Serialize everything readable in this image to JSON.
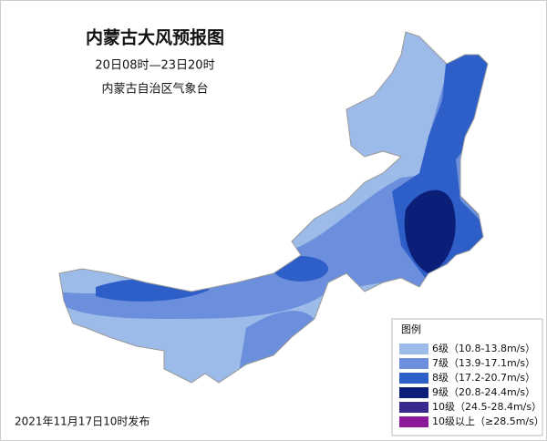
{
  "header": {
    "title": "内蒙古大风预报图",
    "period": "20日08时—23日20时",
    "issuer": "内蒙古自治区气象台"
  },
  "legend": {
    "title": "图例",
    "items": [
      {
        "label": "6级（10.8-13.8m/s）",
        "color": "#9dbbe8"
      },
      {
        "label": "7级（13.9-17.1m/s）",
        "color": "#6b8fdc"
      },
      {
        "label": "8级（17.2-20.7m/s）",
        "color": "#2e5ec8"
      },
      {
        "label": "9级（20.8-24.4m/s）",
        "color": "#0b1e78"
      },
      {
        "label": "10级（24.5-28.4m/s）",
        "color": "#3a2a8e"
      },
      {
        "label": "10级以上（≥28.5m/s）",
        "color": "#8b1a9a"
      }
    ]
  },
  "footer": {
    "issued": "2021年11月17日10时发布"
  }
}
